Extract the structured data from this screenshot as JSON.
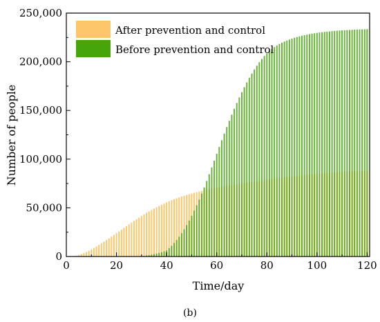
{
  "chart_data": {
    "type": "bar",
    "xlabel": "Time/day",
    "ylabel": "Number of people",
    "caption": "(b)",
    "xlim": [
      0,
      121
    ],
    "ylim": [
      0,
      250000
    ],
    "xticks": [
      0,
      20,
      40,
      60,
      80,
      100,
      120
    ],
    "yticks": [
      0,
      50000,
      100000,
      150000,
      200000,
      250000
    ],
    "xtick_labels": [
      "0",
      "20",
      "40",
      "60",
      "80",
      "100",
      "120"
    ],
    "ytick_labels": [
      "0",
      "50,000",
      "100,000",
      "150,000",
      "200,000",
      "250,000"
    ],
    "legend_position": "top-left",
    "x_start": 1,
    "x_end": 120,
    "series": [
      {
        "name": "After prevention and control",
        "color": "#FDC66A",
        "values": [
          0,
          0,
          0,
          800,
          1500,
          2400,
          3400,
          4600,
          5900,
          7300,
          8800,
          10300,
          11900,
          13500,
          15200,
          16900,
          18600,
          20400,
          22200,
          24000,
          25800,
          27600,
          29400,
          31200,
          33000,
          34800,
          36500,
          38200,
          39900,
          41600,
          43200,
          44800,
          46300,
          47800,
          49200,
          50600,
          51900,
          53200,
          54400,
          55600,
          56700,
          57800,
          58800,
          59800,
          60700,
          61600,
          62400,
          63200,
          64000,
          64700,
          65400,
          66100,
          66700,
          67300,
          67900,
          68500,
          69100,
          69600,
          70100,
          70600,
          71100,
          71600,
          72100,
          72500,
          72900,
          73300,
          73700,
          74100,
          74500,
          74900,
          75300,
          75700,
          76100,
          76500,
          76900,
          77300,
          77700,
          78100,
          78500,
          78900,
          79200,
          79600,
          79900,
          80300,
          80600,
          80900,
          81200,
          81500,
          81800,
          82100,
          82400,
          82700,
          83000,
          83300,
          83600,
          83900,
          84100,
          84400,
          84600,
          84800,
          85000,
          85200,
          85400,
          85600,
          85800,
          86000,
          86200,
          86400,
          86600,
          86800,
          87000,
          87100,
          87300,
          87400,
          87500,
          87600,
          87700,
          87800,
          87900,
          88000
        ]
      },
      {
        "name": "Before prevention and control",
        "color": "#45A50A",
        "values": [
          0,
          0,
          0,
          0,
          0,
          0,
          0,
          0,
          0,
          0,
          0,
          0,
          0,
          0,
          0,
          0,
          0,
          0,
          0,
          0,
          0,
          0,
          0,
          0,
          0,
          0,
          0,
          0,
          0,
          300,
          600,
          1000,
          1400,
          1900,
          2400,
          3000,
          3700,
          4500,
          5300,
          6200,
          8500,
          11000,
          13800,
          16900,
          20300,
          24000,
          28000,
          32300,
          36900,
          41800,
          47100,
          52600,
          58400,
          64600,
          71000,
          77600,
          84500,
          91500,
          98500,
          105500,
          112500,
          119400,
          126200,
          132900,
          139400,
          145700,
          151800,
          157700,
          163400,
          168800,
          173900,
          178800,
          183500,
          187900,
          192100,
          196000,
          199600,
          202900,
          205900,
          208600,
          211000,
          213200,
          215100,
          216800,
          218300,
          219600,
          220800,
          221900,
          222900,
          223800,
          224600,
          225400,
          226100,
          226800,
          227400,
          227900,
          228400,
          228900,
          229300,
          229700,
          230100,
          230400,
          230700,
          231000,
          231200,
          231500,
          231700,
          231900,
          232100,
          232300,
          232400,
          232600,
          232700,
          232900,
          233000,
          233100,
          233200,
          233300,
          233400,
          233500
        ]
      }
    ]
  }
}
